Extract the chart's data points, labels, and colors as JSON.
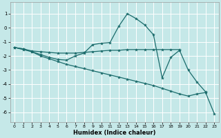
{
  "xlabel": "Humidex (Indice chaleur)",
  "background_color": "#c5e8e8",
  "line_color": "#1a6b6b",
  "grid_color": "#b8d8d8",
  "xlim": [
    -0.5,
    23.5
  ],
  "ylim": [
    -6.7,
    1.8
  ],
  "yticks": [
    1,
    0,
    -1,
    -2,
    -3,
    -4,
    -5,
    -6
  ],
  "xticks": [
    0,
    1,
    2,
    3,
    4,
    5,
    6,
    7,
    8,
    9,
    10,
    11,
    12,
    13,
    14,
    15,
    16,
    17,
    18,
    19,
    20,
    21,
    22,
    23
  ],
  "lines": [
    {
      "x": [
        0,
        1,
        2,
        3,
        4,
        5,
        6,
        7,
        8,
        9,
        10,
        11,
        12,
        13,
        14,
        15,
        16,
        17,
        18,
        19,
        20,
        21,
        22,
        23
      ],
      "y": [
        -1.4,
        -1.5,
        -1.7,
        -2.0,
        -2.2,
        -2.4,
        -2.6,
        -2.75,
        -2.9,
        -3.05,
        -3.2,
        -3.35,
        -3.5,
        -3.65,
        -3.8,
        -3.95,
        -4.1,
        -4.3,
        -4.5,
        -4.7,
        -4.85,
        -4.7,
        -4.6,
        -6.1
      ]
    },
    {
      "x": [
        0,
        1,
        2,
        3,
        4,
        5,
        6,
        7,
        8,
        9,
        10,
        11,
        12,
        13,
        14,
        15,
        16,
        17,
        18,
        19,
        20,
        21,
        22
      ],
      "y": [
        -1.4,
        -1.55,
        -1.7,
        -1.9,
        -2.1,
        -2.25,
        -2.3,
        -2.0,
        -1.8,
        -1.2,
        -1.1,
        -1.05,
        0.1,
        1.0,
        0.65,
        0.2,
        -0.5,
        -3.55,
        -2.1,
        -1.6,
        -3.0,
        -3.85,
        -4.55
      ]
    },
    {
      "x": [
        0,
        1,
        2,
        3,
        4,
        5,
        6,
        7,
        8,
        9,
        10,
        11,
        12,
        13,
        14,
        15,
        16,
        17,
        18,
        19
      ],
      "y": [
        -1.4,
        -1.5,
        -1.65,
        -1.7,
        -1.75,
        -1.8,
        -1.8,
        -1.8,
        -1.75,
        -1.7,
        -1.65,
        -1.6,
        -1.6,
        -1.55,
        -1.55,
        -1.55,
        -1.55,
        -1.55,
        -1.55,
        -1.55
      ]
    }
  ]
}
